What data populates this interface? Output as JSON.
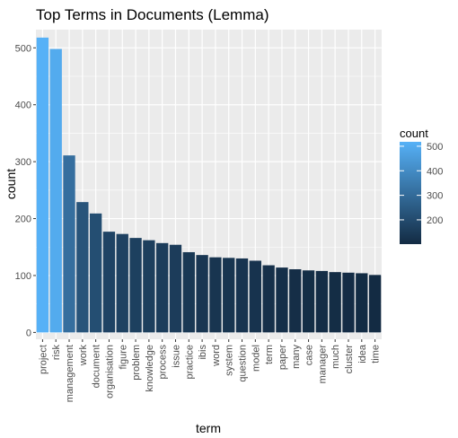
{
  "chart_data": {
    "type": "bar",
    "title": "Top Terms in Documents (Lemma)",
    "xlabel": "term",
    "ylabel": "count",
    "categories": [
      "project",
      "risk",
      "management",
      "work",
      "document",
      "organisation",
      "figure",
      "problem",
      "knowledge",
      "process",
      "issue",
      "practice",
      "ibis",
      "word",
      "system",
      "question",
      "model",
      "term",
      "paper",
      "many",
      "case",
      "manager",
      "much",
      "cluster",
      "idea",
      "time"
    ],
    "values": [
      518,
      498,
      311,
      229,
      209,
      177,
      173,
      166,
      162,
      157,
      154,
      141,
      136,
      132,
      131,
      130,
      126,
      118,
      114,
      111,
      109,
      108,
      106,
      105,
      104,
      101
    ],
    "ylim": [
      -12,
      532
    ],
    "yticks": [
      0,
      100,
      200,
      300,
      400,
      500
    ],
    "grid": true,
    "legend": {
      "title": "count",
      "position": "right",
      "ticks": [
        200,
        300,
        400,
        500
      ],
      "range": [
        101,
        518
      ],
      "color_low": "#132B43",
      "color_high": "#56B1F7"
    },
    "panel_background": "#EBEBEB",
    "grid_color": "#FFFFFF"
  }
}
